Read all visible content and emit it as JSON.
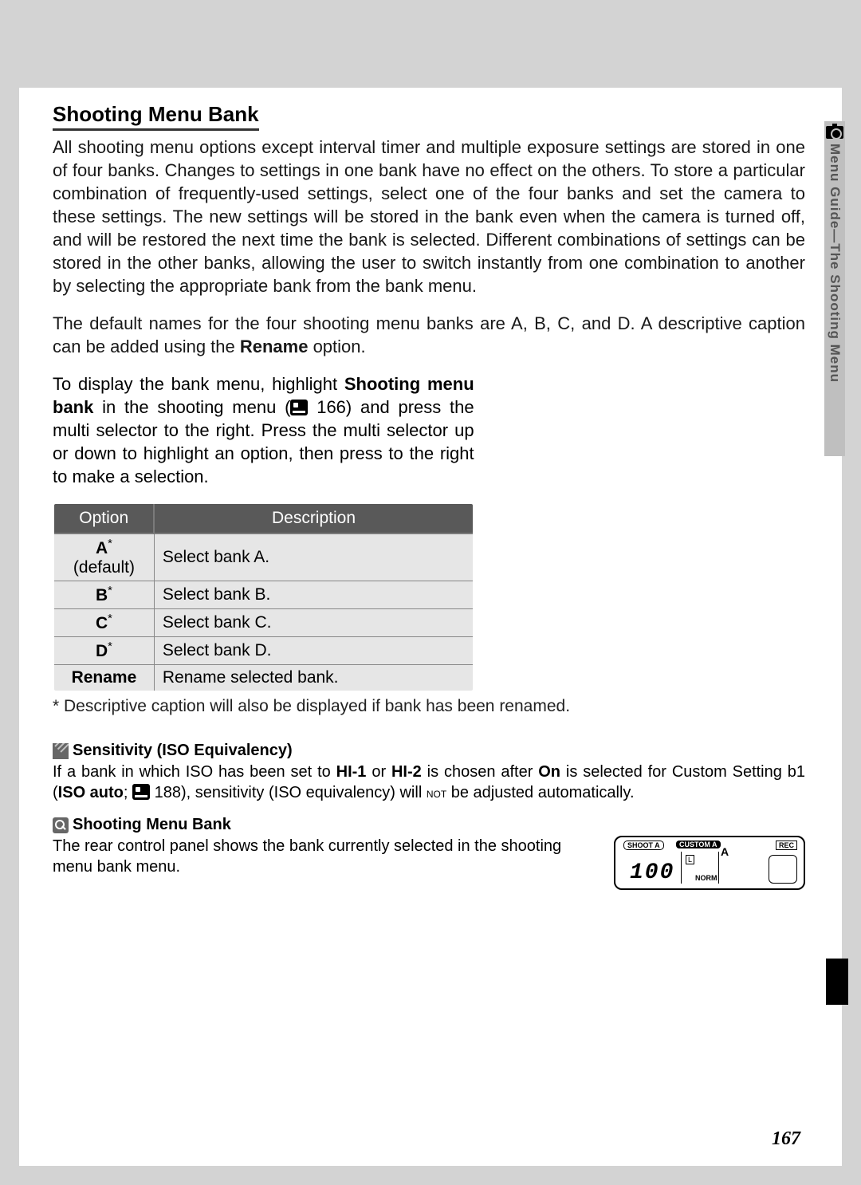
{
  "heading": "Shooting Menu Bank",
  "para1_a": "All shooting menu options except interval timer and multiple exposure settings are stored in one of four banks.  Changes to settings in one bank have no effect on the others.  To store a particular combination of frequently-used settings, select one of the four banks and set the camera to these settings. The new settings will be stored in the bank even when the camera is turned off, and will be restored the next time the bank is selected.  Different combinations of settings can be stored in the other banks, allowing the user to switch instantly from one combination to another by selecting the appropriate bank from the bank menu.",
  "para2_a": "The default names for the four shooting menu banks are A, B, C, and D.  A descriptive caption can be added using the ",
  "para2_bold": "Rename",
  "para2_b": " option.",
  "para3_a": "To display the bank menu, highlight ",
  "para3_bold1": "Shooting menu bank",
  "para3_b": " in the shooting menu (",
  "para3_ref": " 166) and press the multi selector to the right.  Press the multi selector up or down to highlight an option, then press to the right to make a selection.",
  "table": {
    "headers": [
      "Option",
      "Description"
    ],
    "rows": [
      {
        "opt": "A",
        "sup": "*",
        "sub": "(default)",
        "desc": "Select bank A."
      },
      {
        "opt": "B",
        "sup": "*",
        "sub": "",
        "desc": "Select bank B."
      },
      {
        "opt": "C",
        "sup": "*",
        "sub": "",
        "desc": "Select bank C."
      },
      {
        "opt": "D",
        "sup": "*",
        "sub": "",
        "desc": "Select bank D."
      },
      {
        "opt": "Rename",
        "sup": "",
        "sub": "",
        "desc": "Rename selected bank."
      }
    ]
  },
  "footnote": "* Descriptive caption will also be displayed if bank has been renamed.",
  "note1": {
    "title": "Sensitivity (ISO Equivalency)",
    "a": "If a bank in which ISO has been set to ",
    "b1": "HI-1",
    "c": " or ",
    "b2": "HI-2",
    "d": " is chosen after ",
    "b3": "On",
    "e": " is selected for Custom Setting b1 (",
    "b4": "ISO auto",
    "f": "; ",
    "ref": " 188), sensitivity (ISO equivalency) will ",
    "not": "not",
    "g": " be adjusted automatically."
  },
  "note2": {
    "title": "Shooting Menu Bank",
    "text": "The rear control panel shows the bank currently selected in the shooting menu bank menu."
  },
  "lcd": {
    "shoot": "SHOOT A",
    "custom": "CUSTOM A",
    "a": "A",
    "rec": "REC",
    "num": "100",
    "L": "L",
    "norm": "NORM"
  },
  "pagenum": "167",
  "sidetab": "Menu Guide—The Shooting Menu"
}
